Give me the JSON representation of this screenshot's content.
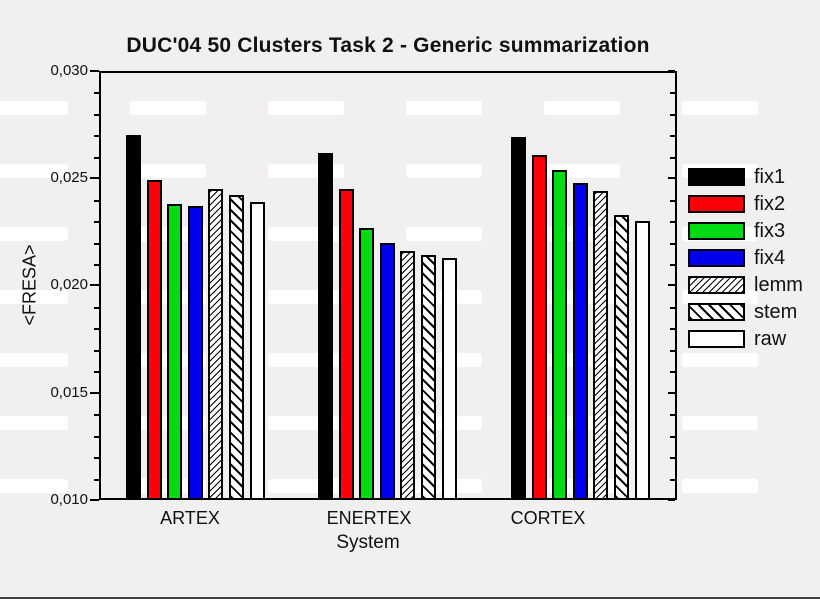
{
  "chart_data": {
    "type": "bar",
    "title": "DUC'04 50 Clusters Task 2 - Generic summarization",
    "xlabel": "System",
    "ylabel": "<FRESA>",
    "ylim": [
      0.01,
      0.03
    ],
    "y_ticks": [
      {
        "value": 0.01,
        "label": "0,010"
      },
      {
        "value": 0.015,
        "label": "0,015"
      },
      {
        "value": 0.02,
        "label": "0,020"
      },
      {
        "value": 0.025,
        "label": "0,025"
      },
      {
        "value": 0.03,
        "label": "0,030"
      }
    ],
    "y_minor_tick_step": 0.001,
    "decimal_separator": ",",
    "grid": false,
    "legend_position": "right",
    "categories": [
      "ARTEX",
      "ENERTEX",
      "CORTEX"
    ],
    "series": [
      {
        "name": "fix1",
        "pattern": "solid",
        "color": "#000000",
        "values": [
          0.027,
          0.0262,
          0.0269
        ]
      },
      {
        "name": "fix2",
        "pattern": "solid",
        "color": "#fb0006",
        "values": [
          0.0249,
          0.0245,
          0.0261
        ]
      },
      {
        "name": "fix3",
        "pattern": "solid",
        "color": "#00dc13",
        "values": [
          0.0238,
          0.0227,
          0.0254
        ]
      },
      {
        "name": "fix4",
        "pattern": "solid",
        "color": "#0000ee",
        "values": [
          0.0237,
          0.022,
          0.0248
        ]
      },
      {
        "name": "lemm",
        "pattern": "hatch-forward",
        "color": "#ffffff",
        "values": [
          0.0245,
          0.0216,
          0.0244
        ]
      },
      {
        "name": "stem",
        "pattern": "hatch-back",
        "color": "#ffffff",
        "values": [
          0.0242,
          0.0214,
          0.0233
        ]
      },
      {
        "name": "raw",
        "pattern": "none",
        "color": "#ffffff",
        "values": [
          0.0239,
          0.0213,
          0.023
        ]
      }
    ]
  }
}
